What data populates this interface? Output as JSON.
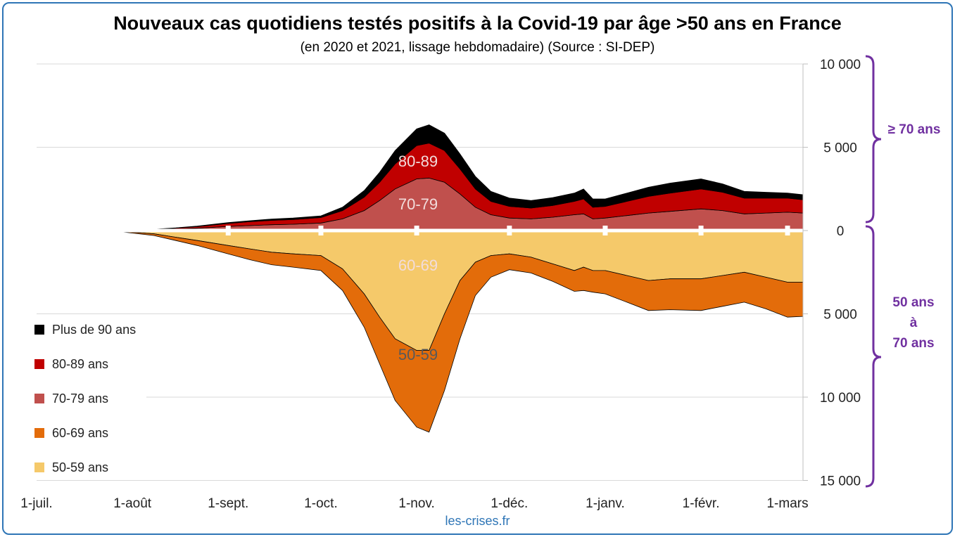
{
  "chart_data": {
    "type": "area",
    "title": "Nouveaux cas quotidiens testés positifs à la Covid-19 par âge >50 ans en France",
    "subtitle": "(en 2020 et 2021, lissage hebdomadaire) (Source : SI-DEP)",
    "source": "les-crises.fr",
    "x_tick_labels": [
      "1-juil.",
      "1-août",
      "1-sept.",
      "1-oct.",
      "1-nov.",
      "1-déc.",
      "1-janv.",
      "1-févr.",
      "1-mars"
    ],
    "x_tick_days": [
      0,
      31,
      62,
      92,
      123,
      153,
      184,
      215,
      243
    ],
    "y_tick_labels": [
      "10 000",
      "5 000",
      "0",
      "5 000",
      "10 000",
      "15 000"
    ],
    "y_tick_values": [
      10000,
      5000,
      0,
      -5000,
      -10000,
      -15000
    ],
    "ylim": [
      -15000,
      10000
    ],
    "legend_position": "left",
    "legend": [
      "Plus de 90 ans",
      "80-89 ans",
      "70-79 ans",
      "60-69 ans",
      "50-59 ans"
    ],
    "series_labels": [
      "80-89",
      "70-79",
      "60-69",
      "50-59"
    ],
    "brace_upper_label": "≥ 70 ans",
    "brace_lower_label": [
      "50 ans",
      "à",
      "70 ans"
    ],
    "x": [
      "2020-07-15",
      "2020-07-20",
      "2020-07-25",
      "2020-08-01",
      "2020-08-08",
      "2020-08-15",
      "2020-08-22",
      "2020-09-01",
      "2020-09-08",
      "2020-09-15",
      "2020-09-22",
      "2020-10-01",
      "2020-10-08",
      "2020-10-15",
      "2020-10-20",
      "2020-10-25",
      "2020-11-01",
      "2020-11-05",
      "2020-11-10",
      "2020-11-15",
      "2020-11-20",
      "2020-11-25",
      "2020-12-01",
      "2020-12-08",
      "2020-12-15",
      "2020-12-22",
      "2020-12-25",
      "2020-12-28",
      "2021-01-01",
      "2021-01-08",
      "2021-01-15",
      "2021-01-22",
      "2021-02-01",
      "2021-02-08",
      "2021-02-15",
      "2021-02-22",
      "2021-03-01",
      "2021-03-06"
    ],
    "series": [
      {
        "name": "Plus de 90 ans",
        "color": "#000000",
        "side": "up",
        "values": [
          0,
          0,
          0,
          0,
          10,
          20,
          30,
          50,
          60,
          80,
          90,
          100,
          200,
          400,
          600,
          800,
          1000,
          1100,
          1050,
          900,
          750,
          600,
          500,
          450,
          480,
          500,
          600,
          500,
          450,
          500,
          550,
          600,
          600,
          500,
          400,
          350,
          300,
          300
        ]
      },
      {
        "name": "80-89 ans",
        "color": "#c00000",
        "side": "up",
        "values": [
          0,
          0,
          0,
          10,
          30,
          60,
          100,
          180,
          230,
          260,
          280,
          330,
          500,
          800,
          1100,
          1500,
          2000,
          2100,
          1900,
          1500,
          1100,
          800,
          700,
          650,
          700,
          800,
          900,
          700,
          700,
          850,
          1000,
          1100,
          1200,
          1100,
          950,
          900,
          850,
          800
        ]
      },
      {
        "name": "70-79 ans",
        "color": "#c0504d",
        "side": "up",
        "values": [
          0,
          0,
          0,
          20,
          40,
          80,
          140,
          250,
          300,
          350,
          380,
          450,
          700,
          1200,
          1800,
          2500,
          3100,
          3150,
          2900,
          2200,
          1400,
          950,
          750,
          700,
          800,
          950,
          1000,
          700,
          750,
          900,
          1050,
          1150,
          1300,
          1200,
          1000,
          1050,
          1100,
          1050
        ]
      },
      {
        "name": "60-69 ans",
        "color": "#e36c0a",
        "side": "down",
        "values": [
          0,
          0,
          0,
          50,
          100,
          200,
          300,
          500,
          650,
          750,
          800,
          900,
          1300,
          2000,
          2800,
          3700,
          4600,
          4900,
          4600,
          3500,
          2000,
          1300,
          950,
          950,
          1050,
          1250,
          1400,
          1300,
          1400,
          1600,
          1800,
          1850,
          1900,
          1850,
          1800,
          1900,
          2100,
          2050
        ]
      },
      {
        "name": "50-59 ans",
        "color": "#f5c96a",
        "side": "down",
        "values": [
          0,
          0,
          0,
          100,
          200,
          400,
          600,
          900,
          1100,
          1300,
          1400,
          1500,
          2300,
          3800,
          5200,
          6500,
          7200,
          7200,
          5000,
          3000,
          1900,
          1500,
          1400,
          1600,
          2000,
          2400,
          2200,
          2400,
          2400,
          2700,
          3000,
          2900,
          2900,
          2700,
          2500,
          2800,
          3100,
          3100
        ]
      }
    ]
  },
  "watermark": "les-crises.fr"
}
